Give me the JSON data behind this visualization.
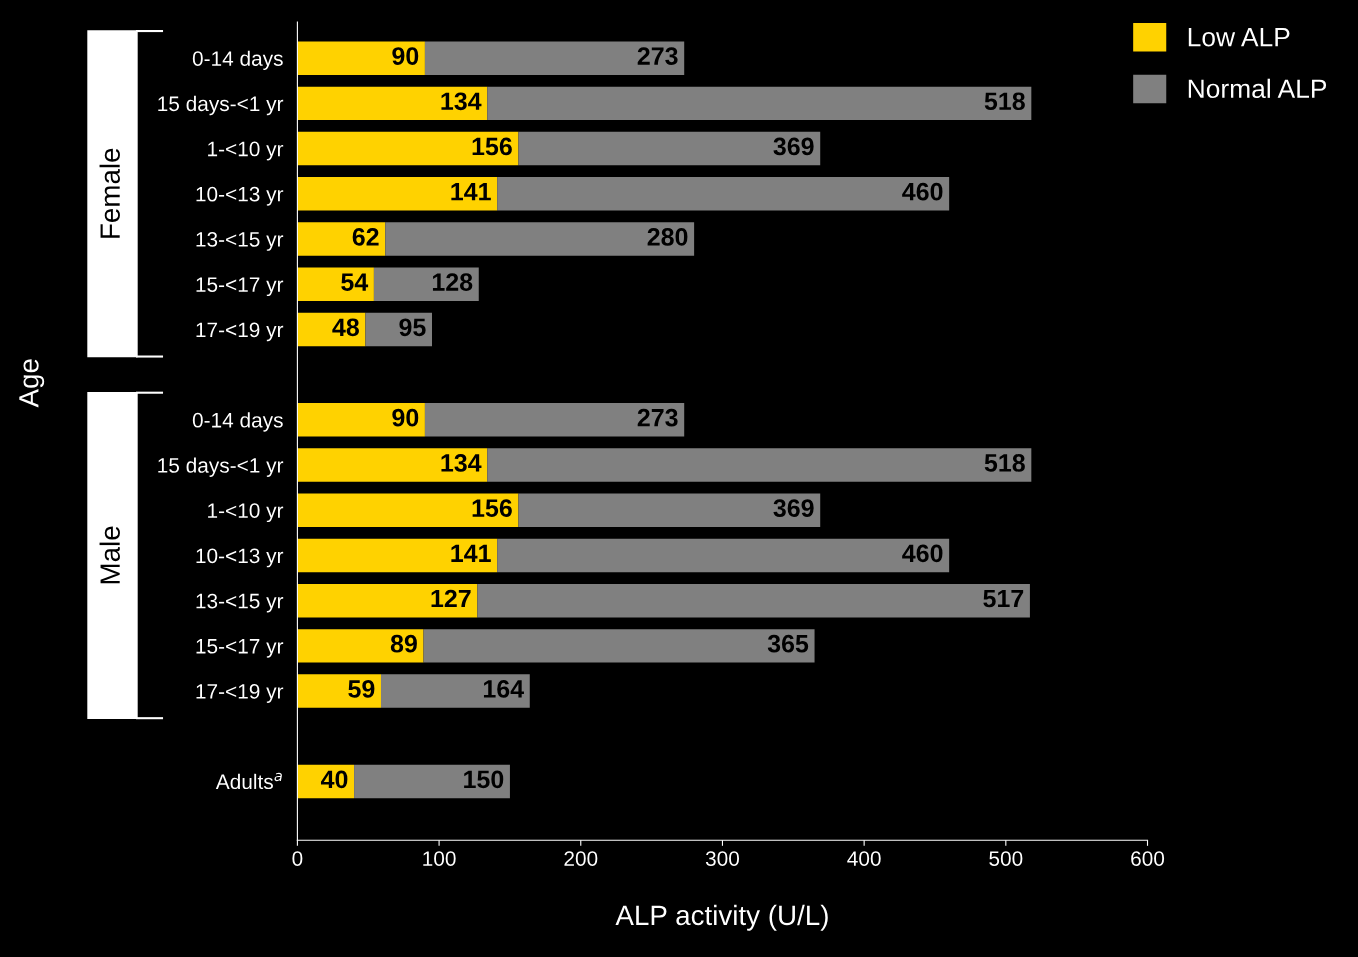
{
  "chart_data": {
    "type": "bar",
    "orientation": "horizontal",
    "xlabel": "ALP activity (U/L)",
    "ylabel": "Age",
    "categories": [
      "0-14 days",
      "15 days-<1 yr",
      "1-<10 yr",
      "10-<13 yr",
      "13-<15 yr",
      "15-<17 yr",
      "17-<19 yr",
      null,
      "0-14 days",
      "15 days-<1 yr",
      "1-<10 yr",
      "10-<13 yr",
      "13-<15 yr",
      "15-<17 yr",
      "17-<19 yr",
      null,
      "Adults$^{a}$"
    ],
    "series": [
      {
        "name": "Low ALP",
        "color": "#ffd200",
        "values": [
          90,
          134,
          156,
          141,
          62,
          54,
          48,
          null,
          90,
          134,
          156,
          141,
          127,
          89,
          59,
          null,
          40
        ],
        "value_labels": [
          "90",
          "134",
          "156",
          "141",
          "62",
          "54",
          "48",
          null,
          "90",
          "134",
          "156",
          "141",
          "127",
          "89",
          "59",
          null,
          "40"
        ]
      },
      {
        "name": "Normal ALP",
        "color": "#808080",
        "values": [
          183,
          384,
          213,
          319,
          218,
          74,
          47,
          null,
          183,
          384,
          213,
          319,
          390,
          276,
          105,
          null,
          110
        ]
      }
    ],
    "totals": [
      "273",
      "518",
      "369",
      "460",
      "280",
      "128",
      "95",
      null,
      "273",
      "518",
      "369",
      "460",
      "517",
      "365",
      "164",
      null,
      "150"
    ],
    "stacked": true,
    "annotations": [
      "Female",
      "Male"
    ],
    "xlim": [
      0,
      600
    ],
    "xticks": [
      0,
      100,
      200,
      300,
      400,
      500,
      600
    ],
    "legend": "top right",
    "grid": false
  }
}
